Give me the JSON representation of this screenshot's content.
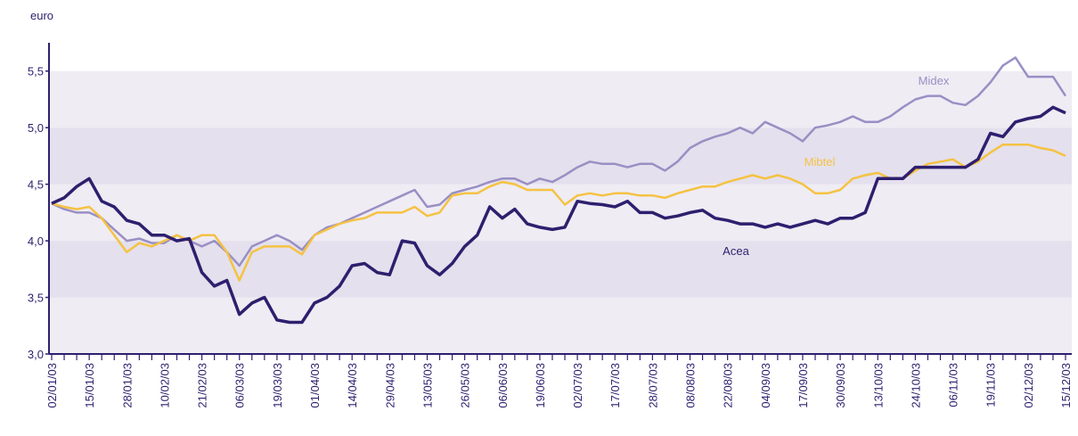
{
  "chart_data": {
    "type": "line",
    "y_label": "euro",
    "categories": [
      "02/01/03",
      null,
      null,
      "15/01/03",
      null,
      null,
      "28/01/03",
      null,
      null,
      "10/02/03",
      null,
      null,
      "21/02/03",
      null,
      null,
      "06/03/03",
      null,
      null,
      "19/03/03",
      null,
      null,
      "01/04/03",
      null,
      null,
      "14/04/03",
      null,
      null,
      "29/04/03",
      null,
      null,
      "13/05/03",
      null,
      null,
      "26/05/03",
      null,
      null,
      "06/06/03",
      null,
      null,
      "19/06/03",
      null,
      null,
      "02/07/03",
      null,
      null,
      "17/07/03",
      null,
      null,
      "28/07/03",
      null,
      null,
      "08/08/03",
      null,
      null,
      "22/08/03",
      null,
      null,
      "04/09/03",
      null,
      null,
      "17/09/03",
      null,
      null,
      "30/09/03",
      null,
      null,
      "13/10/03",
      null,
      null,
      "24/10/03",
      null,
      null,
      "06/11/03",
      null,
      null,
      "19/11/03",
      null,
      null,
      "02/12/03",
      null,
      null,
      "15/12/03"
    ],
    "series": [
      {
        "name": "Midex",
        "color": "#9a8fc4",
        "values": [
          4.33,
          4.28,
          4.25,
          4.25,
          4.2,
          4.1,
          4.0,
          4.02,
          3.98,
          3.98,
          4.05,
          4.0,
          3.95,
          4.0,
          3.9,
          3.78,
          3.95,
          4.0,
          4.05,
          4.0,
          3.92,
          4.05,
          4.12,
          4.15,
          4.2,
          4.25,
          4.3,
          4.35,
          4.4,
          4.45,
          4.3,
          4.32,
          4.42,
          4.45,
          4.48,
          4.52,
          4.55,
          4.55,
          4.5,
          4.55,
          4.52,
          4.58,
          4.65,
          4.7,
          4.68,
          4.68,
          4.65,
          4.68,
          4.68,
          4.62,
          4.7,
          4.82,
          4.88,
          4.92,
          4.95,
          5.0,
          4.95,
          5.05,
          5.0,
          4.95,
          4.88,
          5.0,
          5.02,
          5.05,
          5.1,
          5.05,
          5.05,
          5.1,
          5.18,
          5.25,
          5.28,
          5.28,
          5.22,
          5.2,
          5.28,
          5.4,
          5.55,
          5.62,
          5.45,
          5.45,
          5.45,
          5.28
        ]
      },
      {
        "name": "Mibtel",
        "color": "#f5c242",
        "values": [
          4.33,
          4.3,
          4.28,
          4.3,
          4.2,
          4.05,
          3.9,
          3.98,
          3.95,
          4.0,
          4.05,
          4.0,
          4.05,
          4.05,
          3.9,
          3.65,
          3.9,
          3.95,
          3.95,
          3.95,
          3.88,
          4.05,
          4.1,
          4.15,
          4.18,
          4.2,
          4.25,
          4.25,
          4.25,
          4.3,
          4.22,
          4.25,
          4.4,
          4.42,
          4.42,
          4.48,
          4.52,
          4.5,
          4.45,
          4.45,
          4.45,
          4.32,
          4.4,
          4.42,
          4.4,
          4.42,
          4.42,
          4.4,
          4.4,
          4.38,
          4.42,
          4.45,
          4.48,
          4.48,
          4.52,
          4.55,
          4.58,
          4.55,
          4.58,
          4.55,
          4.5,
          4.42,
          4.42,
          4.45,
          4.55,
          4.58,
          4.6,
          4.55,
          4.55,
          4.62,
          4.68,
          4.7,
          4.72,
          4.65,
          4.7,
          4.78,
          4.85,
          4.85,
          4.85,
          4.82,
          4.8,
          4.75
        ]
      },
      {
        "name": "Acea",
        "color": "#2e1f6e",
        "values": [
          4.33,
          4.38,
          4.48,
          4.55,
          4.35,
          4.3,
          4.18,
          4.15,
          4.05,
          4.05,
          4.0,
          4.02,
          3.72,
          3.6,
          3.65,
          3.35,
          3.45,
          3.5,
          3.3,
          3.28,
          3.28,
          3.45,
          3.5,
          3.6,
          3.78,
          3.8,
          3.72,
          3.7,
          4.0,
          3.98,
          3.78,
          3.7,
          3.8,
          3.95,
          4.05,
          4.3,
          4.2,
          4.28,
          4.15,
          4.12,
          4.1,
          4.12,
          4.35,
          4.33,
          4.32,
          4.3,
          4.35,
          4.25,
          4.25,
          4.2,
          4.22,
          4.25,
          4.27,
          4.2,
          4.18,
          4.15,
          4.15,
          4.12,
          4.15,
          4.12,
          4.15,
          4.18,
          4.15,
          4.2,
          4.2,
          4.25,
          4.55,
          4.55,
          4.55,
          4.65,
          4.65,
          4.65,
          4.65,
          4.65,
          4.72,
          4.95,
          4.92,
          5.05,
          5.08,
          5.1,
          5.18,
          5.13
        ]
      }
    ],
    "ylim": [
      3,
      5.75
    ],
    "yticks": [
      {
        "value": 3,
        "label": "3,0"
      },
      {
        "value": 3.5,
        "label": "3,5"
      },
      {
        "value": 4,
        "label": "4,0"
      },
      {
        "value": 4.5,
        "label": "4,5"
      },
      {
        "value": 5,
        "label": "5,0"
      },
      {
        "value": 5.5,
        "label": "5,5"
      }
    ],
    "band_colors": [
      "#efecf4",
      "#e4e0ed"
    ],
    "axis_color": "#2e1f6e"
  }
}
